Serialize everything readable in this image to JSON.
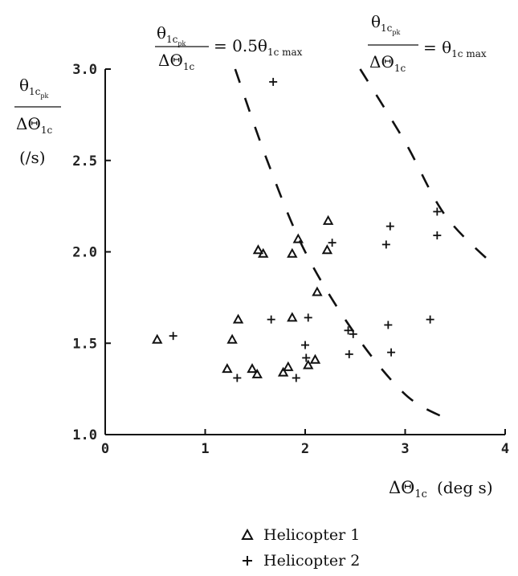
{
  "chart_data": {
    "type": "scatter",
    "xlabel": "ΔΘ1c (deg s)",
    "ylabel": "θ1cpk / ΔΘ1c (/s)",
    "xlim": [
      0,
      4
    ],
    "ylim": [
      1.0,
      3.0
    ],
    "x_ticks": [
      "0",
      "1",
      "2",
      "3",
      "4"
    ],
    "y_ticks": [
      "1.0",
      "1.5",
      "2.0",
      "2.5",
      "3.0"
    ],
    "series": [
      {
        "name": "Helicopter 1",
        "marker": "triangle",
        "points": [
          [
            0.52,
            1.52
          ],
          [
            1.22,
            1.36
          ],
          [
            1.27,
            1.52
          ],
          [
            1.33,
            1.63
          ],
          [
            1.47,
            1.36
          ],
          [
            1.52,
            1.33
          ],
          [
            1.53,
            2.01
          ],
          [
            1.58,
            1.99
          ],
          [
            1.78,
            1.34
          ],
          [
            1.83,
            1.37
          ],
          [
            1.87,
            1.99
          ],
          [
            1.87,
            1.64
          ],
          [
            1.93,
            2.07
          ],
          [
            2.03,
            1.38
          ],
          [
            2.1,
            1.41
          ],
          [
            2.12,
            1.78
          ],
          [
            2.22,
            2.01
          ],
          [
            2.23,
            2.17
          ]
        ]
      },
      {
        "name": "Helicopter 2",
        "marker": "plus",
        "points": [
          [
            0.68,
            1.54
          ],
          [
            1.32,
            1.31
          ],
          [
            1.66,
            1.63
          ],
          [
            1.68,
            2.93
          ],
          [
            1.91,
            1.31
          ],
          [
            2.0,
            1.49
          ],
          [
            2.01,
            1.42
          ],
          [
            2.03,
            1.64
          ],
          [
            2.27,
            2.05
          ],
          [
            2.43,
            1.57
          ],
          [
            2.44,
            1.44
          ],
          [
            2.48,
            1.55
          ],
          [
            2.81,
            2.04
          ],
          [
            2.83,
            1.6
          ],
          [
            2.85,
            2.14
          ],
          [
            2.86,
            1.45
          ],
          [
            3.25,
            1.63
          ],
          [
            3.32,
            2.22
          ],
          [
            3.32,
            2.09
          ]
        ]
      }
    ],
    "curves": [
      {
        "label": "θ1cpk/ΔΘ1c = 0.5θ1cmax",
        "style": "dashed",
        "points": [
          [
            1.3,
            3.0
          ],
          [
            1.62,
            2.5
          ],
          [
            2.0,
            2.0
          ],
          [
            2.5,
            1.55
          ],
          [
            3.0,
            1.22
          ],
          [
            3.4,
            1.09
          ]
        ]
      },
      {
        "label": "θ1cpk/ΔΘ1c = θ1cmax",
        "style": "dashed",
        "points": [
          [
            2.55,
            3.0
          ],
          [
            3.0,
            2.6
          ],
          [
            3.4,
            2.2
          ],
          [
            3.9,
            1.92
          ]
        ]
      }
    ]
  },
  "annotations": {
    "left_curve_numerator": "θ",
    "left_curve_num_sub": "1c",
    "left_curve_num_subsub": "pk",
    "left_curve_denominator": "ΔΘ",
    "left_curve_den_sub": "1c",
    "left_curve_rhs": "= 0.5θ",
    "left_curve_rhs_sub": "1c max",
    "right_curve_numerator": "θ",
    "right_curve_num_sub": "1c",
    "right_curve_num_subsub": "pk",
    "right_curve_denominator": "ΔΘ",
    "right_curve_den_sub": "1c",
    "right_curve_rhs": "= θ",
    "right_curve_rhs_sub": "1c max",
    "y_axis_numerator": "θ",
    "y_axis_num_sub": "1c",
    "y_axis_num_subsub": "pk",
    "y_axis_denominator": "ΔΘ",
    "y_axis_den_sub": "1c",
    "y_axis_unit": "(/s)",
    "x_axis_symbol": "ΔΘ",
    "x_axis_sub": "1c",
    "x_axis_unit": "(deg s)"
  },
  "legend": [
    {
      "label": "Helicopter 1",
      "marker": "triangle"
    },
    {
      "label": "Helicopter 2",
      "marker": "plus"
    }
  ]
}
